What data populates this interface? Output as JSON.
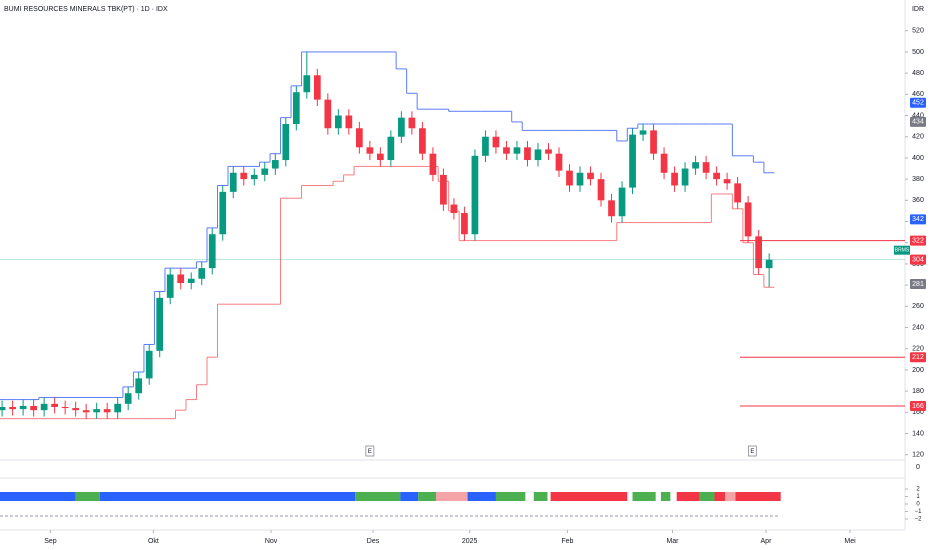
{
  "chart_data": {
    "type": "candlestick",
    "title": "BUMI RESOURCES MINERALS TBK(PT) · 1D · IDX",
    "currency": "IDR",
    "symbol": "BRMS",
    "ylim": [
      115,
      549
    ],
    "yticks": [
      120,
      140,
      160,
      180,
      200,
      220,
      240,
      260,
      280,
      300,
      320,
      340,
      360,
      380,
      400,
      420,
      440,
      460,
      480,
      500,
      520
    ],
    "xlim": [
      -0.2,
      88.5
    ],
    "xticks": [
      {
        "value": 4.6,
        "label": "Sep"
      },
      {
        "value": 14.4,
        "label": "Okt"
      },
      {
        "value": 25.6,
        "label": "Nov"
      },
      {
        "value": 35.3,
        "label": "Des"
      },
      {
        "value": 44.5,
        "label": "2025"
      },
      {
        "value": 53.8,
        "label": "Feb"
      },
      {
        "value": 63.8,
        "label": "Mar"
      },
      {
        "value": 72.7,
        "label": "Apr"
      },
      {
        "value": 80.7,
        "label": "Mei"
      }
    ],
    "up_color": "#089981",
    "down_color": "#f23645",
    "open": [
      162,
      165,
      163,
      166,
      162,
      168,
      165,
      164,
      162,
      160,
      163,
      160,
      168,
      178,
      192,
      218,
      268,
      290,
      282,
      286,
      296,
      328,
      368,
      386,
      380,
      384,
      390,
      398,
      432,
      462,
      478,
      455,
      428,
      440,
      428,
      410,
      404,
      398,
      420,
      438,
      428,
      404,
      384,
      356,
      348,
      328,
      402,
      420,
      410,
      404,
      410,
      398,
      408,
      404,
      388,
      374,
      386,
      380,
      360,
      345,
      372,
      422,
      426,
      404,
      386,
      374,
      390,
      396,
      386,
      380,
      376,
      358,
      326,
      296
    ],
    "high": [
      171,
      171,
      172,
      172,
      174,
      174,
      171,
      170,
      168,
      169,
      169,
      174,
      184,
      198,
      224,
      274,
      296,
      296,
      292,
      302,
      334,
      374,
      392,
      392,
      390,
      396,
      404,
      438,
      468,
      500,
      484,
      461,
      446,
      446,
      434,
      416,
      410,
      426,
      444,
      444,
      434,
      410,
      390,
      362,
      354,
      408,
      426,
      426,
      416,
      416,
      416,
      414,
      414,
      410,
      394,
      392,
      392,
      386,
      366,
      378,
      428,
      432,
      432,
      410,
      392,
      396,
      402,
      402,
      392,
      386,
      382,
      364,
      332,
      310
    ],
    "low": [
      156,
      157,
      157,
      156,
      156,
      159,
      158,
      156,
      154,
      154,
      154,
      154,
      162,
      172,
      186,
      212,
      262,
      276,
      276,
      280,
      290,
      322,
      362,
      374,
      374,
      378,
      384,
      392,
      426,
      456,
      449,
      422,
      422,
      422,
      404,
      398,
      392,
      392,
      414,
      422,
      398,
      378,
      350,
      342,
      322,
      322,
      396,
      404,
      398,
      398,
      392,
      392,
      398,
      382,
      368,
      368,
      374,
      354,
      339,
      339,
      366,
      416,
      398,
      380,
      368,
      368,
      384,
      380,
      374,
      370,
      352,
      320,
      290,
      278
    ],
    "close": [
      165,
      163,
      166,
      162,
      168,
      165,
      164,
      162,
      160,
      163,
      160,
      168,
      178,
      192,
      218,
      268,
      290,
      282,
      286,
      296,
      328,
      368,
      386,
      380,
      384,
      390,
      398,
      432,
      462,
      478,
      455,
      428,
      440,
      428,
      410,
      404,
      398,
      420,
      438,
      428,
      404,
      384,
      356,
      348,
      328,
      402,
      420,
      410,
      404,
      410,
      398,
      408,
      404,
      388,
      374,
      386,
      380,
      360,
      345,
      372,
      422,
      426,
      404,
      386,
      374,
      390,
      396,
      386,
      380,
      376,
      358,
      326,
      296,
      304
    ],
    "channel": [
      {
        "name": "upper",
        "color": "#5b7cfa",
        "values": [
          172,
          172,
          172,
          172,
          174,
          174,
          174,
          174,
          174,
          174,
          174,
          174,
          184,
          198,
          224,
          274,
          296,
          296,
          296,
          302,
          334,
          374,
          392,
          392,
          392,
          396,
          404,
          438,
          468,
          500,
          500,
          500,
          500,
          500,
          500,
          500,
          500,
          500,
          484,
          461,
          446,
          446,
          446,
          444,
          444,
          444,
          444,
          444,
          444,
          434,
          426,
          426,
          426,
          426,
          426,
          426,
          426,
          426,
          426,
          416,
          428,
          432,
          432,
          432,
          432,
          432,
          432,
          432,
          432,
          432,
          402,
          402,
          396,
          386
        ]
      },
      {
        "name": "lower",
        "color": "#f77c80",
        "values": [
          154,
          154,
          154,
          154,
          154,
          154,
          154,
          154,
          154,
          154,
          154,
          154,
          154,
          154,
          154,
          154,
          154,
          162,
          172,
          186,
          212,
          262,
          262,
          262,
          262,
          262,
          262,
          362,
          362,
          374,
          374,
          374,
          378,
          384,
          392,
          392,
          392,
          392,
          392,
          392,
          392,
          392,
          378,
          350,
          322,
          322,
          322,
          322,
          322,
          322,
          322,
          322,
          322,
          322,
          322,
          322,
          322,
          322,
          322,
          339,
          339,
          339,
          339,
          339,
          339,
          339,
          339,
          339,
          366,
          366,
          352,
          320,
          290,
          278
        ]
      }
    ],
    "level_lines": [
      {
        "value": 322,
        "color": "#f23645"
      },
      {
        "value": 212,
        "color": "#f23645"
      },
      {
        "value": 166,
        "color": "#f23645"
      }
    ],
    "axis_badges": [
      {
        "value": 452,
        "color": "#2962ff"
      },
      {
        "value": 434,
        "color": "#787b86"
      },
      {
        "value": 342,
        "color": "#2962ff"
      },
      {
        "value": 322,
        "color": "#f23645"
      },
      {
        "value": 304,
        "color": "#f23645"
      },
      {
        "value": 281,
        "color": "#787b86"
      },
      {
        "value": 212,
        "color": "#f23645"
      },
      {
        "value": 166,
        "color": "#f23645"
      }
    ],
    "events": [
      {
        "x": 35,
        "label": "E"
      },
      {
        "x": 71.4,
        "label": "E"
      }
    ],
    "lower_panel": {
      "zero_label": "0",
      "yticks": [
        {
          "value": 2,
          "label": "2"
        },
        {
          "value": 1,
          "label": "1"
        },
        {
          "value": 0,
          "label": "0"
        },
        {
          "value": -1,
          "label": "−1"
        },
        {
          "value": -2,
          "label": "−2"
        }
      ],
      "strip": [
        {
          "from": -0.2,
          "to": 7,
          "color": "#2962ff"
        },
        {
          "from": 7,
          "to": 9.3,
          "color": "#4caf50"
        },
        {
          "from": 9.3,
          "to": 33.6,
          "color": "#2962ff"
        },
        {
          "from": 33.6,
          "to": 37.9,
          "color": "#4caf50"
        },
        {
          "from": 37.9,
          "to": 39.6,
          "color": "#2962ff"
        },
        {
          "from": 39.6,
          "to": 41.3,
          "color": "#4caf50"
        },
        {
          "from": 41.3,
          "to": 44.3,
          "color": "#f4a3a6"
        },
        {
          "from": 44.3,
          "to": 47,
          "color": "#2962ff"
        },
        {
          "from": 47,
          "to": 49.8,
          "color": "#4caf50"
        },
        {
          "from": 50.6,
          "to": 51.9,
          "color": "#4caf50"
        },
        {
          "from": 52.2,
          "to": 59.5,
          "color": "#f23645"
        },
        {
          "from": 60,
          "to": 62.2,
          "color": "#4caf50"
        },
        {
          "from": 62.7,
          "to": 63.6,
          "color": "#4caf50"
        },
        {
          "from": 64.2,
          "to": 66.4,
          "color": "#f23645"
        },
        {
          "from": 66.4,
          "to": 67.8,
          "color": "#4caf50"
        },
        {
          "from": 67.8,
          "to": 68.8,
          "color": "#f23645"
        },
        {
          "from": 68.8,
          "to": 69.8,
          "color": "#f4a3a6"
        },
        {
          "from": 69.8,
          "to": 74.1,
          "color": "#f23645"
        }
      ]
    }
  }
}
